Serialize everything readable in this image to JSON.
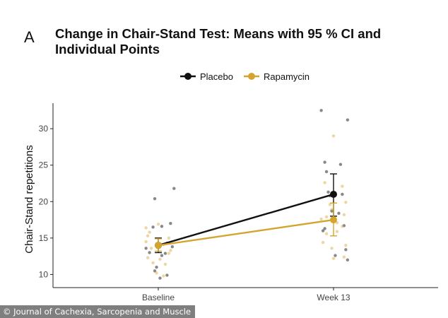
{
  "panel_label": "A",
  "credit": "© Journal of Cachexia, Sarcopenia and Muscle",
  "colors": {
    "placebo": "#111111",
    "rapamycin": "#d4a42f"
  },
  "chart_data": {
    "type": "line",
    "title": "Change in Chair-Stand Test: Means with 95 % CI and Individual Points",
    "xlabel": "",
    "ylabel": "Chair-Stand repetitions",
    "categories": [
      "Baseline",
      "Week 13"
    ],
    "ylim": [
      8.2,
      33.5
    ],
    "yticks": [
      "10",
      "15",
      "20",
      "25",
      "30"
    ],
    "legend_position": "top",
    "grid": false,
    "series": [
      {
        "name": "Placebo",
        "means": [
          14.0,
          21.0
        ],
        "ci_low": [
          13.0,
          18.0
        ],
        "ci_high": [
          15.0,
          23.8
        ],
        "points": [
          [
            0.98,
            20.4
          ],
          [
            1.09,
            21.8
          ],
          [
            0.97,
            16.5
          ],
          [
            1.07,
            17.0
          ],
          [
            1.02,
            16.6
          ],
          [
            0.99,
            14.0
          ],
          [
            1.05,
            14.3
          ],
          [
            1.08,
            13.8
          ],
          [
            0.95,
            13.0
          ],
          [
            1.04,
            12.9
          ],
          [
            1.02,
            12.6
          ],
          [
            0.93,
            13.6
          ],
          [
            0.99,
            11.0
          ],
          [
            0.98,
            10.5
          ],
          [
            1.01,
            9.5
          ],
          [
            1.05,
            9.9
          ],
          [
            1.93,
            32.5
          ],
          [
            2.08,
            31.2
          ],
          [
            1.95,
            25.4
          ],
          [
            2.04,
            25.1
          ],
          [
            1.96,
            24.1
          ],
          [
            1.97,
            21.3
          ],
          [
            2.05,
            21.0
          ],
          [
            1.98,
            20.8
          ],
          [
            1.99,
            18.7
          ],
          [
            2.03,
            18.4
          ],
          [
            1.95,
            16.3
          ],
          [
            2.06,
            16.7
          ],
          [
            1.94,
            16.0
          ],
          [
            2.07,
            13.4
          ],
          [
            2.01,
            12.6
          ],
          [
            2.08,
            12.0
          ]
        ]
      },
      {
        "name": "Rapamycin",
        "means": [
          14.0,
          17.5
        ],
        "ci_low": [
          13.2,
          15.3
        ],
        "ci_high": [
          14.9,
          19.8
        ],
        "points": [
          [
            0.93,
            16.4
          ],
          [
            0.95,
            15.8
          ],
          [
            1.0,
            16.9
          ],
          [
            0.94,
            15.3
          ],
          [
            1.06,
            15.0
          ],
          [
            0.93,
            14.5
          ],
          [
            1.03,
            14.1
          ],
          [
            0.96,
            13.6
          ],
          [
            1.07,
            13.3
          ],
          [
            0.94,
            12.3
          ],
          [
            1.06,
            12.9
          ],
          [
            1.01,
            12.1
          ],
          [
            0.97,
            11.6
          ],
          [
            1.04,
            11.4
          ],
          [
            0.99,
            10.2
          ],
          [
            1.03,
            9.8
          ],
          [
            2.0,
            29.0
          ],
          [
            1.95,
            22.6
          ],
          [
            2.05,
            22.1
          ],
          [
            1.98,
            19.6
          ],
          [
            2.07,
            19.9
          ],
          [
            1.99,
            18.9
          ],
          [
            2.06,
            18.2
          ],
          [
            1.96,
            17.9
          ],
          [
            2.02,
            17.1
          ],
          [
            1.93,
            17.6
          ],
          [
            2.05,
            16.6
          ],
          [
            1.96,
            15.6
          ],
          [
            2.02,
            15.9
          ],
          [
            1.94,
            14.4
          ],
          [
            2.07,
            14.0
          ],
          [
            1.99,
            13.6
          ],
          [
            2.06,
            12.4
          ],
          [
            2.0,
            12.2
          ]
        ]
      }
    ]
  }
}
